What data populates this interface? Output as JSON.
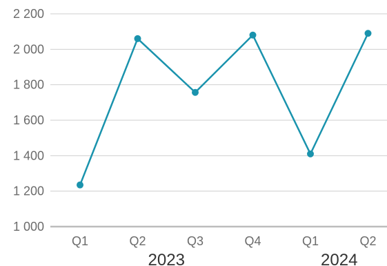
{
  "chart_data": {
    "type": "line",
    "title": "",
    "xlabel": "",
    "ylabel": "",
    "ylim": [
      1000,
      2200
    ],
    "y_ticks": [
      1000,
      1200,
      1400,
      1600,
      1800,
      2000,
      2200
    ],
    "y_tick_labels": [
      "1 000",
      "1 200",
      "1 400",
      "1 600",
      "1 800",
      "2 000",
      "2 200"
    ],
    "categories": [
      "Q1",
      "Q2",
      "Q3",
      "Q4",
      "Q1",
      "Q2"
    ],
    "groups": [
      {
        "label": "2023",
        "categories": [
          "Q1",
          "Q2",
          "Q3",
          "Q4"
        ]
      },
      {
        "label": "2024",
        "categories": [
          "Q1",
          "Q2"
        ]
      }
    ],
    "series": [
      {
        "values": [
          1235,
          2060,
          1757,
          2080,
          1410,
          2090
        ],
        "color": "#1a93ad"
      }
    ],
    "grid": true,
    "legend": "none",
    "colors": {
      "gridline": "#cfcfcf",
      "baseline": "#bdbdbd",
      "line": "#1a93ad"
    }
  }
}
